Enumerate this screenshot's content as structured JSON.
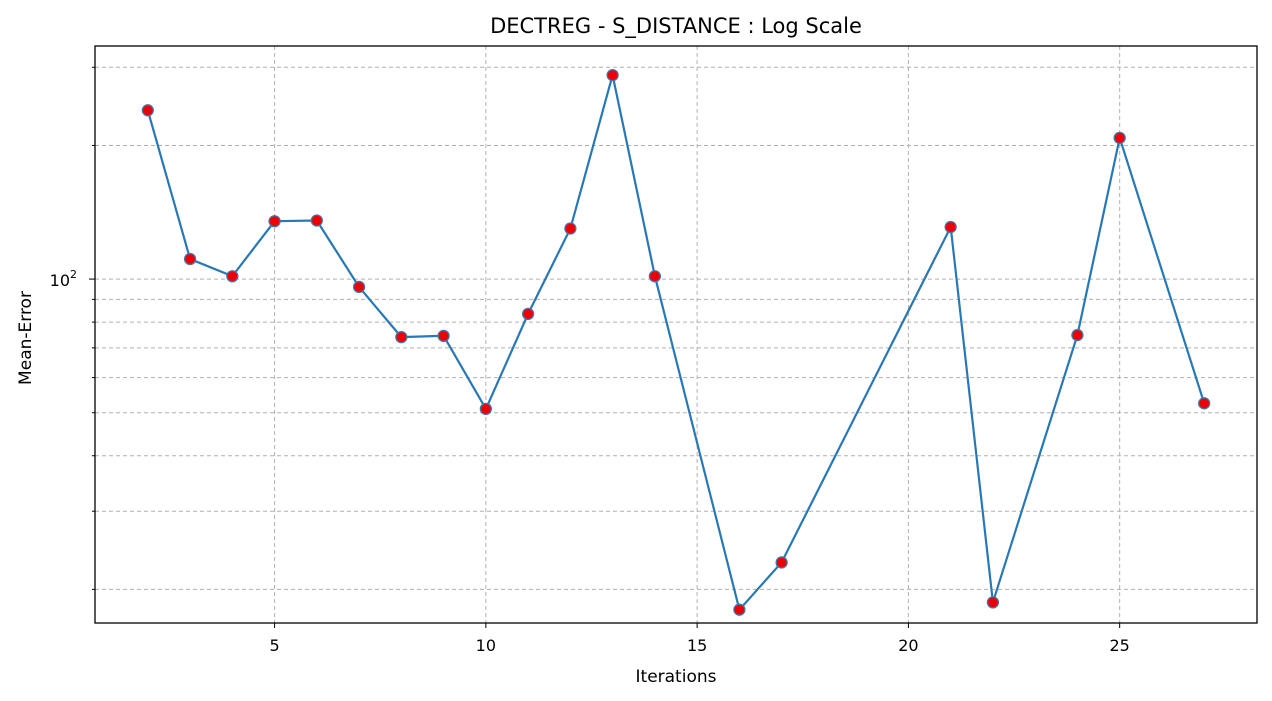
{
  "chart_data": {
    "type": "line",
    "title": "DECTREG - S_DISTANCE : Log Scale",
    "xlabel": "Iterations",
    "ylabel": "Mean-Error",
    "yscale": "log",
    "grid": true,
    "x": [
      2,
      3,
      4,
      5,
      6,
      7,
      8,
      9,
      10,
      11,
      12,
      13,
      14,
      16,
      17,
      21,
      22,
      24,
      25,
      27
    ],
    "series": [
      {
        "values": [
          240,
          111,
          101.5,
          135,
          135.5,
          96,
          74,
          74.5,
          51,
          83.5,
          130,
          288,
          101.5,
          18,
          23,
          131,
          18.7,
          74.8,
          208,
          52.5
        ]
      }
    ],
    "xlim": [
      0.75,
      28.25
    ],
    "ylim": [
      16.8,
      335
    ],
    "x_ticks": [
      5,
      10,
      15,
      20,
      25
    ],
    "x_tick_labels": [
      "5",
      "10",
      "15",
      "20",
      "25"
    ],
    "y_major_ticks": [
      100
    ],
    "y_tick_labels": [
      "10",
      "2"
    ],
    "y_minor_grid": [
      20,
      30,
      40,
      50,
      60,
      70,
      80,
      90,
      200,
      300
    ],
    "line_color": "#2878b5",
    "marker_color": "#ee0000",
    "marker_edge_color": "#4a74a8"
  }
}
